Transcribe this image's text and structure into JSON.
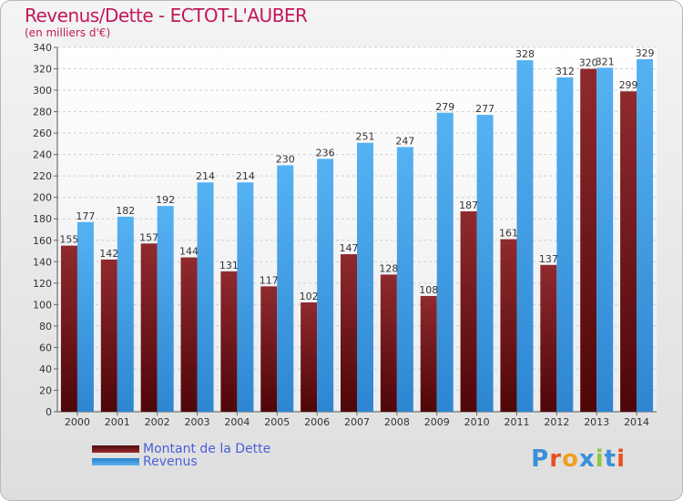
{
  "title": "Revenus/Dette - ECTOT-L'AUBER",
  "subtitle": "(en milliers d'€)",
  "logo_text": "Proxiti",
  "colors": {
    "dette": "#7b1a1f",
    "revenus": "#3c9ee8",
    "title": "#c2185b",
    "legend_text": "#4a5fd8"
  },
  "chart_data": {
    "type": "bar",
    "title": "Revenus/Dette - ECTOT-L'AUBER",
    "subtitle": "(en milliers d'€)",
    "categories": [
      "2000",
      "2001",
      "2002",
      "2003",
      "2004",
      "2005",
      "2006",
      "2007",
      "2008",
      "2009",
      "2010",
      "2011",
      "2012",
      "2013",
      "2014"
    ],
    "series": [
      {
        "name": "Montant de la Dette",
        "values": [
          155,
          142,
          157,
          144,
          131,
          117,
          102,
          147,
          128,
          108,
          187,
          161,
          137,
          320,
          299
        ]
      },
      {
        "name": "Revenus",
        "values": [
          177,
          182,
          192,
          214,
          214,
          230,
          236,
          251,
          247,
          279,
          277,
          328,
          312,
          321,
          329
        ]
      }
    ],
    "ylim": [
      0,
      340
    ],
    "yticks": [
      0,
      20,
      40,
      60,
      80,
      100,
      120,
      140,
      160,
      180,
      200,
      220,
      240,
      260,
      280,
      300,
      320,
      340
    ],
    "grid": true,
    "legend_position": "bottom-left"
  }
}
